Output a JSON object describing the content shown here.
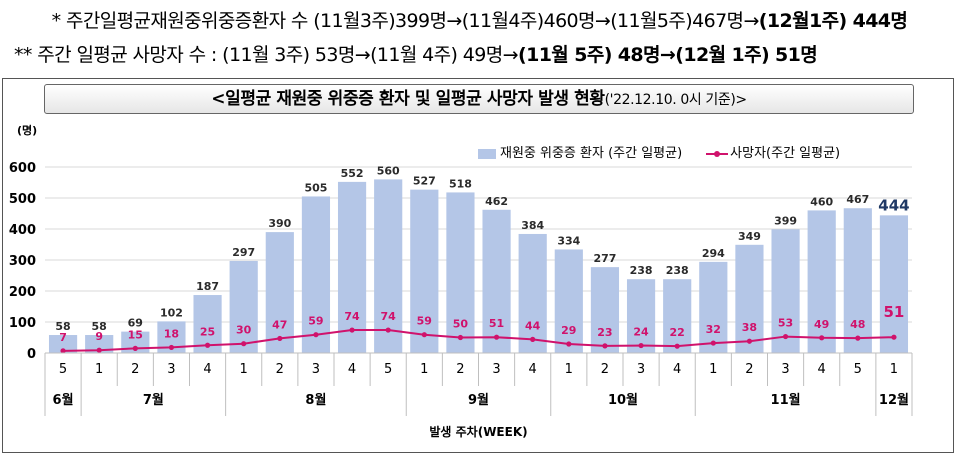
{
  "notes": {
    "line1_prefix": "*  주간일평균재원중위중증환자 수 (11월3주)399명→(11월4주)460명→(11월5주)467명→",
    "line1_bold": "(12월1주) 444명",
    "line2_prefix": "**  주간 일평균 사망자 수 : (11월 3주) 53명→(11월 4주) 49명→",
    "line2_bold": "(11월 5주) 48명→(12월 1주) 51명"
  },
  "chart_data": {
    "type": "bar",
    "title": "<일평균 재원중 위중증 환자 및 일평균 사망자 발생 현황",
    "subtitle": "('22.12.10. 0시 기준)>",
    "ylabel": "(명)",
    "xlabel": "발생 주차(WEEK)",
    "ylim": [
      0,
      600
    ],
    "yticks": [
      0,
      100,
      200,
      300,
      400,
      500,
      600
    ],
    "categories": [
      "5",
      "1",
      "2",
      "3",
      "4",
      "1",
      "2",
      "3",
      "4",
      "5",
      "1",
      "2",
      "3",
      "4",
      "1",
      "2",
      "3",
      "4",
      "1",
      "2",
      "3",
      "4",
      "5",
      "1"
    ],
    "month_groups": [
      {
        "label": "6월",
        "count": 1
      },
      {
        "label": "7월",
        "count": 4
      },
      {
        "label": "8월",
        "count": 5
      },
      {
        "label": "9월",
        "count": 4
      },
      {
        "label": "10월",
        "count": 4
      },
      {
        "label": "11월",
        "count": 5
      },
      {
        "label": "12월",
        "count": 1
      }
    ],
    "series": [
      {
        "name": "재원중 위중증 환자 (주간 일평균)",
        "type": "bar",
        "color": "#b4c6e7",
        "values": [
          58,
          58,
          69,
          102,
          187,
          297,
          390,
          505,
          552,
          560,
          527,
          518,
          462,
          384,
          334,
          277,
          238,
          238,
          294,
          349,
          399,
          460,
          467,
          444
        ]
      },
      {
        "name": "사망자(주간 일평균)",
        "type": "line",
        "color": "#d0126c",
        "values": [
          7,
          9,
          15,
          18,
          25,
          30,
          47,
          59,
          74,
          74,
          59,
          50,
          51,
          44,
          29,
          23,
          24,
          22,
          32,
          38,
          53,
          49,
          48,
          51
        ]
      }
    ]
  }
}
